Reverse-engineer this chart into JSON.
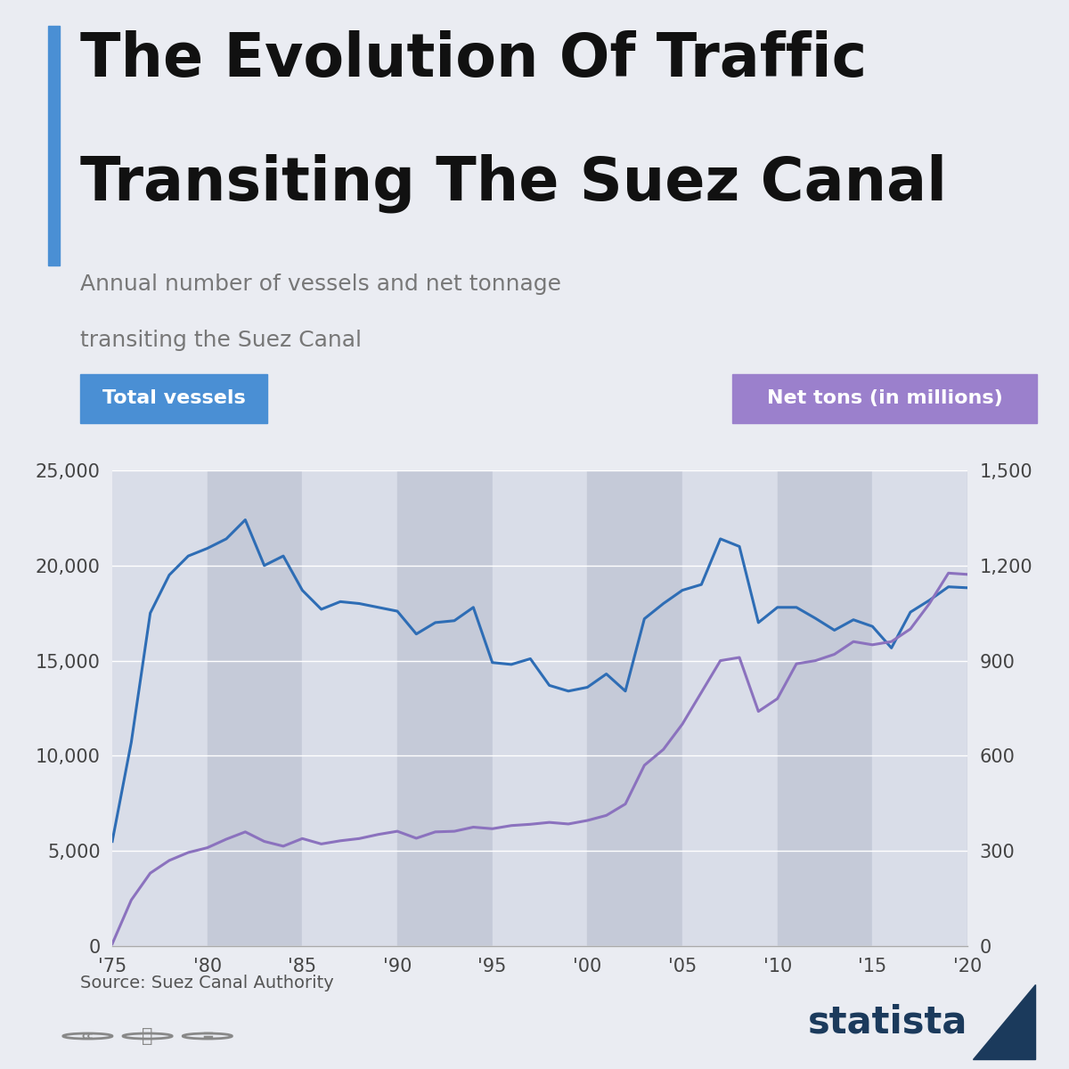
{
  "title_line1": "The Evolution Of Traffic",
  "title_line2": "Transiting The Suez Canal",
  "subtitle_line1": "Annual number of vessels and net tonnage",
  "subtitle_line2": "transiting the Suez Canal",
  "left_label": "Total vessels",
  "right_label": "Net tons (in millions)",
  "source": "Source: Suez Canal Authority",
  "bg_color": "#eaecf2",
  "plot_bg_color": "#d9dde8",
  "stripe_color_dark": "#c5cad8",
  "stripe_color_light": "#d9dde8",
  "title_bar_color": "#4a8fd4",
  "left_line_color": "#2e6db5",
  "right_line_color": "#8b72be",
  "left_label_bg": "#4a8fd4",
  "right_label_bg": "#9b80cc",
  "statista_color": "#1b3a5c",
  "years": [
    1975,
    1976,
    1977,
    1978,
    1979,
    1980,
    1981,
    1982,
    1983,
    1984,
    1985,
    1986,
    1987,
    1988,
    1989,
    1990,
    1991,
    1992,
    1993,
    1994,
    1995,
    1996,
    1997,
    1998,
    1999,
    2000,
    2001,
    2002,
    2003,
    2004,
    2005,
    2006,
    2007,
    2008,
    2009,
    2010,
    2011,
    2012,
    2013,
    2014,
    2015,
    2016,
    2017,
    2018,
    2019,
    2020
  ],
  "vessels": [
    5500,
    10700,
    17500,
    19500,
    20500,
    20900,
    21400,
    22400,
    20000,
    20500,
    18700,
    17700,
    18100,
    18000,
    17800,
    17600,
    16400,
    17000,
    17100,
    17800,
    14900,
    14800,
    15100,
    13700,
    13400,
    13600,
    14300,
    13400,
    17200,
    18000,
    18700,
    19000,
    21400,
    21000,
    17000,
    17800,
    17800,
    17225,
    16600,
    17148,
    16800,
    15667,
    17550,
    18174,
    18880,
    18829
  ],
  "net_tons": [
    7,
    145,
    230,
    270,
    295,
    310,
    337,
    360,
    330,
    315,
    339,
    322,
    332,
    339,
    352,
    362,
    340,
    360,
    362,
    375,
    370,
    380,
    384,
    390,
    385,
    396,
    412,
    448,
    570,
    620,
    700,
    800,
    900,
    910,
    740,
    780,
    890,
    900,
    920,
    960,
    950,
    960,
    1000,
    1080,
    1176,
    1172
  ],
  "xlim": [
    1975,
    2020
  ],
  "ylim_left": [
    0,
    25000
  ],
  "ylim_right": [
    0,
    1500
  ],
  "yticks_left": [
    0,
    5000,
    10000,
    15000,
    20000,
    25000
  ],
  "yticks_right": [
    0,
    300,
    600,
    900,
    1200,
    1500
  ],
  "xticks": [
    1975,
    1980,
    1985,
    1990,
    1995,
    2000,
    2005,
    2010,
    2015,
    2020
  ],
  "xtick_labels": [
    "'75",
    "'80",
    "'85",
    "'90",
    "'95",
    "'00",
    "'05",
    "'10",
    "'15",
    "'20"
  ]
}
